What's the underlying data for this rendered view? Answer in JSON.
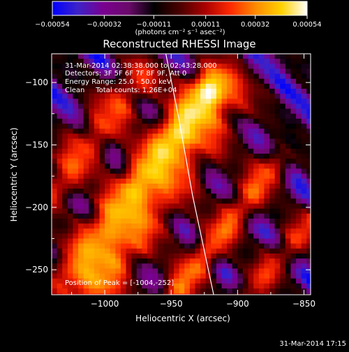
{
  "chart_data": {
    "type": "heatmap",
    "title": "Reconstructed RHESSI Image",
    "xlabel": "Heliocentric X (arcsec)",
    "ylabel": "Heliocentric Y (arcsec)",
    "xlim": [
      -1040,
      -845
    ],
    "ylim": [
      -270,
      -77
    ],
    "x_ticks": [
      -1000,
      -950,
      -900,
      -850
    ],
    "x_tick_labels": [
      "−1000",
      "−950",
      "−900",
      "−850"
    ],
    "y_ticks": [
      -100,
      -150,
      -200,
      -250
    ],
    "y_tick_labels": [
      "−100",
      "−150",
      "−200",
      "−250"
    ],
    "colorbar": {
      "min": -0.00054,
      "max": 0.00054,
      "ticks": [
        -0.00054,
        -0.00032,
        -0.00011,
        0.00011,
        0.00032,
        0.00054
      ],
      "tick_labels": [
        "−0.00054",
        "−0.00032",
        "−0.00011",
        "0.00011",
        "0.00032",
        "0.00054"
      ],
      "unit_label": "(photons cm⁻² s⁻¹ asec⁻²)",
      "colors": [
        "#0000ff",
        "#3d23c8",
        "#7a0090",
        "#6a0a6a",
        "#000000",
        "#4a0000",
        "#aa0000",
        "#ff2a00",
        "#ff8c00",
        "#ffd200",
        "#ffffff"
      ]
    },
    "annotations": [
      "31-Mar-2014 02:38:38.000 to 02:43:28.000",
      "Detectors: 3F 5F 6F 7F 8F 9F, Att 0",
      "Energy Range: 25.0 - 50.0 keV",
      "Clean     Total counts: 1.26E+04"
    ],
    "peak_label": "Position of Peak = [-1004,-252]",
    "peak_position": [
      -1004,
      -252
    ],
    "limb_curve": [
      [
        -954,
        -77
      ],
      [
        -944,
        -130
      ],
      [
        -934,
        -190
      ],
      [
        -924,
        -240
      ],
      [
        -918,
        -270
      ]
    ],
    "emission_ridges": [
      {
        "start": [
          -1015,
          -258
        ],
        "end": [
          -915,
          -110
        ],
        "width": 17,
        "amp": 1.0
      },
      {
        "start": [
          -1040,
          -185
        ],
        "end": [
          -975,
          -95
        ],
        "width": 11,
        "amp": 0.7
      },
      {
        "start": [
          -950,
          -270
        ],
        "end": [
          -875,
          -165
        ],
        "width": 10,
        "amp": 0.62
      },
      {
        "start": [
          -895,
          -270
        ],
        "end": [
          -845,
          -210
        ],
        "width": 9,
        "amp": 0.55
      }
    ],
    "grid": false
  },
  "footer": {
    "timestamp": "31-Mar-2014 17:15"
  }
}
